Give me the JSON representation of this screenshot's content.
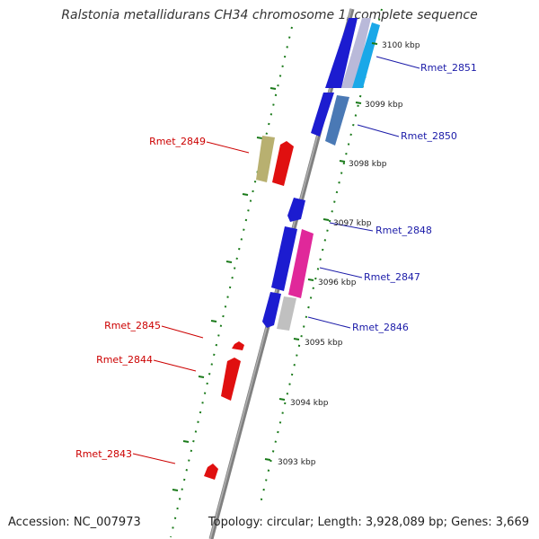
{
  "title": "Ralstonia metallidurans CH34 chromosome 1, complete sequence",
  "footer": {
    "accession": "Accession: NC_007973",
    "summary": "Topology: circular; Length: 3,928,089 bp; Genes: 3,669"
  },
  "ticks": [
    {
      "label": "3100 kbp"
    },
    {
      "label": "3099 kbp"
    },
    {
      "label": "3098 kbp"
    },
    {
      "label": "3097 kbp"
    },
    {
      "label": "3096 kbp"
    },
    {
      "label": "3095 kbp"
    },
    {
      "label": "3094 kbp"
    },
    {
      "label": "3093 kbp"
    }
  ],
  "genes_forward": [
    {
      "name": "Rmet_2851",
      "color": "#1c1cd0"
    },
    {
      "name": "Rmet_2850",
      "color": "#4a79b5"
    },
    {
      "name": "Rmet_2848",
      "color": "#1c1cd0"
    },
    {
      "name": "Rmet_2847",
      "color": "#e0289a"
    },
    {
      "name": "Rmet_2846",
      "color": "#b8b8b8"
    }
  ],
  "genes_reverse": [
    {
      "name": "Rmet_2849",
      "color": "#e01010"
    },
    {
      "name": "Rmet_2845",
      "color": "#e01010"
    },
    {
      "name": "Rmet_2844",
      "color": "#e01010"
    },
    {
      "name": "Rmet_2843",
      "color": "#e01010"
    }
  ],
  "colors": {
    "backbone": "#808080",
    "tick": "#1a7a1a",
    "forward_label": "#1a1aa8",
    "reverse_label": "#cc0000",
    "gene_blue": "#1c1cd0",
    "gene_cyan": "#1aa8e8",
    "gene_khaki": "#b8b070",
    "gene_gray": "#c0c0c0"
  }
}
